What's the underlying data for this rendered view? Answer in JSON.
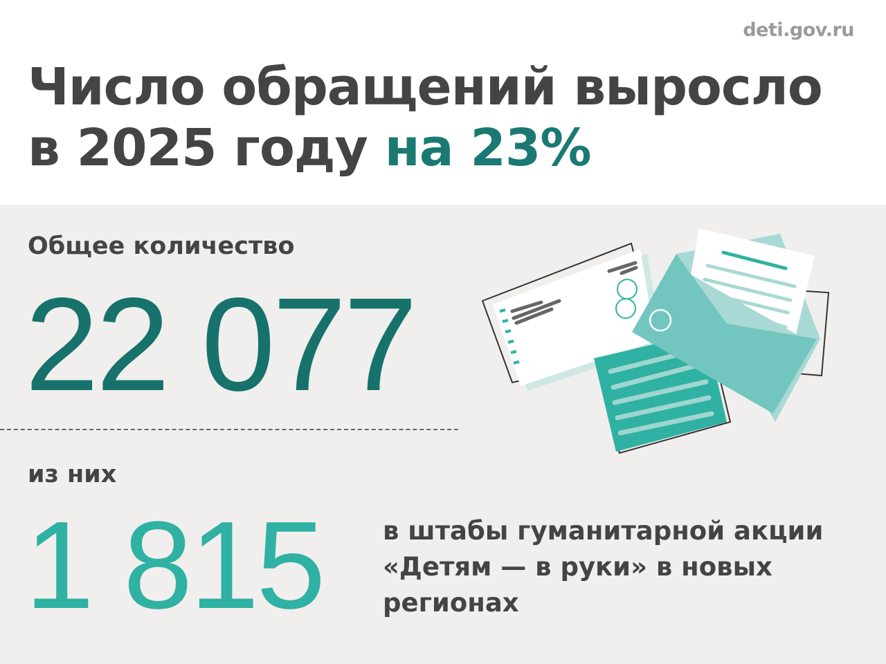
{
  "site": "deti.gov.ru",
  "title": {
    "line1": "Число обращений выросло",
    "line2_prefix": "в 2025 году ",
    "line2_accent": "на 23%"
  },
  "total": {
    "label": "Общее количество",
    "value": "22 077"
  },
  "subset": {
    "label": "из них",
    "value": "1 815",
    "description": "в штабы гуманитарной акции «Детям — в руки» в новых регионах"
  },
  "colors": {
    "dark_teal": "#17726c",
    "light_teal": "#2fb1a3",
    "text": "#444444",
    "panel": "#f0efed"
  },
  "illustration": "envelopes-and-letters"
}
